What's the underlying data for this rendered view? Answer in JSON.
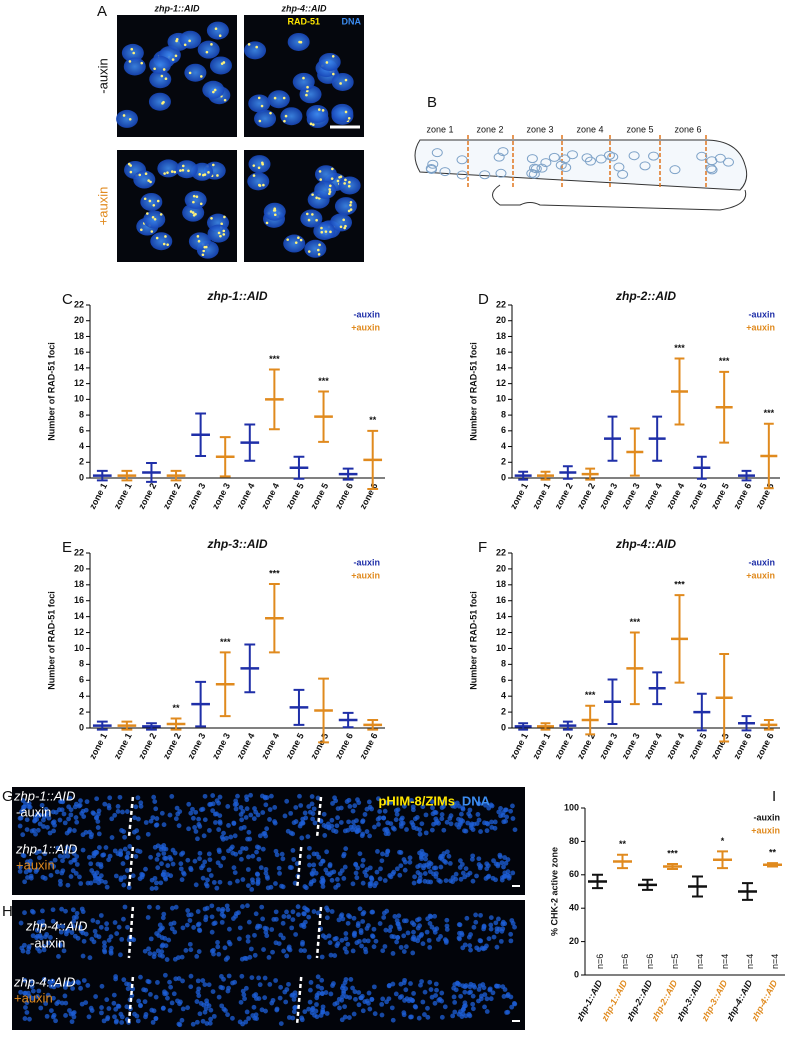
{
  "panel_a": {
    "label": "A",
    "columns": [
      "zhp-1::AID",
      "zhp-4::AID"
    ],
    "legend": [
      "RAD-51",
      "DNA"
    ],
    "rows": [
      "-auxin",
      "+auxin"
    ]
  },
  "panel_b": {
    "label": "B",
    "zones": [
      "zone 1",
      "zone 2",
      "zone 3",
      "zone 4",
      "zone 5",
      "zone 6"
    ]
  },
  "panel_g": {
    "label": "G",
    "strain": "zhp-1::AID",
    "rows": [
      "-auxin",
      "+auxin"
    ],
    "legend": [
      "pHIM-8/ZIMs",
      "DNA"
    ]
  },
  "panel_h": {
    "label": "H",
    "strain": "zhp-4::AID",
    "rows": [
      "-auxin",
      "+auxin"
    ]
  },
  "chart_data": [
    {
      "type": "dot",
      "panel": "C",
      "title": "zhp-1::AID",
      "y_label": "Number of RAD-51 foci",
      "categories": [
        "zone 1",
        "zone 1",
        "zone 2",
        "zone 2",
        "zone 3",
        "zone 3",
        "zone 4",
        "zone 4",
        "zone 5",
        "zone 5",
        "zone 6",
        "zone 6"
      ],
      "series": [
        {
          "name": "-auxin",
          "color": "#1f2fa8",
          "values": [
            0.3,
            null,
            0.7,
            null,
            5.5,
            null,
            4.5,
            null,
            1.3,
            null,
            0.5,
            null
          ],
          "errors": [
            0.6,
            null,
            1.2,
            null,
            2.7,
            null,
            2.3,
            null,
            1.4,
            null,
            0.7,
            null
          ]
        },
        {
          "name": "+auxin",
          "color": "#e08a1e",
          "values": [
            null,
            0.3,
            null,
            0.3,
            null,
            2.7,
            null,
            10,
            null,
            7.8,
            null,
            2.3
          ],
          "errors": [
            null,
            0.6,
            null,
            0.6,
            null,
            2.5,
            null,
            3.8,
            null,
            3.2,
            null,
            3.7
          ]
        }
      ],
      "significance": [
        null,
        null,
        null,
        null,
        null,
        null,
        null,
        "***",
        null,
        "***",
        null,
        "**"
      ],
      "ylim": [
        0,
        22
      ],
      "yticks": [
        0,
        2,
        4,
        6,
        8,
        10,
        12,
        14,
        16,
        18,
        20,
        22
      ],
      "legend": "top-right"
    },
    {
      "type": "dot",
      "panel": "D",
      "title": "zhp-2::AID",
      "y_label": "Number of RAD-51 foci",
      "categories": [
        "zone 1",
        "zone 1",
        "zone 2",
        "zone 2",
        "zone 3",
        "zone 3",
        "zone 4",
        "zone 4",
        "zone 5",
        "zone 5",
        "zone 6",
        "zone 6"
      ],
      "series": [
        {
          "name": "-auxin",
          "color": "#1f2fa8",
          "values": [
            0.3,
            null,
            0.7,
            null,
            5,
            null,
            5,
            null,
            1.3,
            null,
            0.3,
            null
          ],
          "errors": [
            0.5,
            null,
            0.8,
            null,
            2.8,
            null,
            2.8,
            null,
            1.4,
            null,
            0.6,
            null
          ]
        },
        {
          "name": "+auxin",
          "color": "#e08a1e",
          "values": [
            null,
            0.3,
            null,
            0.5,
            null,
            3.3,
            null,
            11,
            null,
            9,
            null,
            2.8
          ],
          "errors": [
            null,
            0.5,
            null,
            0.7,
            null,
            3,
            null,
            4.2,
            null,
            4.5,
            null,
            4.1
          ]
        }
      ],
      "significance": [
        null,
        null,
        null,
        null,
        null,
        null,
        null,
        "***",
        null,
        "***",
        null,
        "***"
      ],
      "ylim": [
        0,
        22
      ],
      "yticks": [
        0,
        2,
        4,
        6,
        8,
        10,
        12,
        14,
        16,
        18,
        20,
        22
      ],
      "legend": "top-right"
    },
    {
      "type": "dot",
      "panel": "E",
      "title": "zhp-3::AID",
      "y_label": "Number of RAD-51 foci",
      "categories": [
        "zone 1",
        "zone 1",
        "zone 2",
        "zone 2",
        "zone 3",
        "zone 3",
        "zone 4",
        "zone 4",
        "zone 5",
        "zone 5",
        "zone 6",
        "zone 6"
      ],
      "series": [
        {
          "name": "-auxin",
          "color": "#1f2fa8",
          "values": [
            0.3,
            null,
            0.2,
            null,
            3,
            null,
            7.5,
            null,
            2.6,
            null,
            1,
            null
          ],
          "errors": [
            0.5,
            null,
            0.4,
            null,
            2.8,
            null,
            3,
            null,
            2.2,
            null,
            0.9,
            null
          ]
        },
        {
          "name": "+auxin",
          "color": "#e08a1e",
          "values": [
            null,
            0.3,
            null,
            0.5,
            null,
            5.5,
            null,
            13.8,
            null,
            2.2,
            null,
            0.4
          ],
          "errors": [
            null,
            0.5,
            null,
            0.7,
            null,
            4,
            null,
            4.3,
            null,
            4,
            null,
            0.6
          ]
        }
      ],
      "significance": [
        null,
        null,
        null,
        "**",
        null,
        "***",
        null,
        "***",
        null,
        null,
        null,
        null
      ],
      "ylim": [
        0,
        22
      ],
      "yticks": [
        0,
        2,
        4,
        6,
        8,
        10,
        12,
        14,
        16,
        18,
        20,
        22
      ],
      "legend": "top-right"
    },
    {
      "type": "dot",
      "panel": "F",
      "title": "zhp-4::AID",
      "y_label": "Number of RAD-51 foci",
      "categories": [
        "zone 1",
        "zone 1",
        "zone 2",
        "zone 2",
        "zone 3",
        "zone 3",
        "zone 4",
        "zone 4",
        "zone 5",
        "zone 5",
        "zone 6",
        "zone 6"
      ],
      "series": [
        {
          "name": "-auxin",
          "color": "#1f2fa8",
          "values": [
            0.2,
            null,
            0.3,
            null,
            3.3,
            null,
            5,
            null,
            2,
            null,
            0.6,
            null
          ],
          "errors": [
            0.4,
            null,
            0.5,
            null,
            2.8,
            null,
            2,
            null,
            2.3,
            null,
            0.9,
            null
          ]
        },
        {
          "name": "+auxin",
          "color": "#e08a1e",
          "values": [
            null,
            0.2,
            null,
            1,
            null,
            7.5,
            null,
            11.2,
            null,
            3.8,
            null,
            0.4
          ],
          "errors": [
            null,
            0.4,
            null,
            1.8,
            null,
            4.5,
            null,
            5.5,
            null,
            5.5,
            null,
            0.6
          ]
        }
      ],
      "significance": [
        null,
        null,
        null,
        "***",
        null,
        "***",
        null,
        "***",
        null,
        null,
        null,
        null
      ],
      "ylim": [
        0,
        22
      ],
      "yticks": [
        0,
        2,
        4,
        6,
        8,
        10,
        12,
        14,
        16,
        18,
        20,
        22
      ],
      "legend": "top-right"
    },
    {
      "type": "dot",
      "panel": "I",
      "y_label": "% CHK-2 active zone",
      "categories": [
        "zhp-1::AID",
        "zhp-1::AID",
        "zhp-2::AID",
        "zhp-2::AID",
        "zhp-3::AID",
        "zhp-3::AID",
        "zhp-4::AID",
        "zhp-4::AID"
      ],
      "series": [
        {
          "name": "-auxin",
          "color": "#111111",
          "values": [
            56,
            null,
            54,
            null,
            53,
            null,
            50,
            null
          ],
          "errors": [
            4,
            null,
            3,
            null,
            6,
            null,
            5,
            null
          ]
        },
        {
          "name": "+auxin",
          "color": "#e08a1e",
          "values": [
            null,
            68,
            null,
            65,
            null,
            69,
            null,
            66
          ],
          "errors": [
            null,
            4,
            null,
            1.5,
            null,
            5,
            null,
            1
          ]
        }
      ],
      "significance": [
        null,
        "**",
        null,
        "***",
        null,
        "*",
        null,
        "**"
      ],
      "n_labels": [
        "n=6",
        "n=6",
        "n=6",
        "n=5",
        "n=4",
        "n=4",
        "n=4",
        "n=4"
      ],
      "color_category_labels": true,
      "ylim": [
        0,
        100
      ],
      "yticks": [
        0,
        20,
        40,
        60,
        80,
        100
      ],
      "legend": "top-right"
    }
  ]
}
